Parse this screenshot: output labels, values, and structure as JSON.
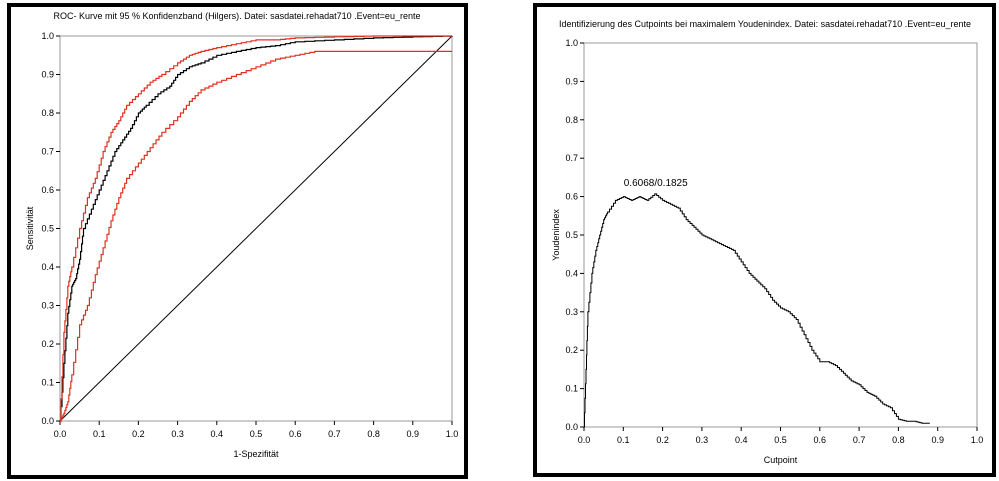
{
  "chart_data": [
    {
      "type": "line",
      "title": "ROC- Kurve mit  95 % Konfidenzband (Hilgers). Datei: sasdatei.rehadat710 .Event=eu_rente",
      "xlabel": "1-Spezifität",
      "ylabel": "Sensitivität",
      "xlim": [
        0,
        1
      ],
      "ylim": [
        0,
        1
      ],
      "xticks": [
        "0.0",
        "0.1",
        "0.2",
        "0.3",
        "0.4",
        "0.5",
        "0.6",
        "0.7",
        "0.8",
        "0.9",
        "1.0"
      ],
      "yticks": [
        "0.0",
        "0.1",
        "0.2",
        "0.3",
        "0.4",
        "0.5",
        "0.6",
        "0.7",
        "0.8",
        "0.9",
        "1.0"
      ],
      "grid": false,
      "colors": {
        "roc": "#000000",
        "band": "#e03020",
        "diagonal": "#000000"
      },
      "series": [
        {
          "role": "roc",
          "x": [
            0,
            0.01,
            0.02,
            0.03,
            0.04,
            0.05,
            0.06,
            0.08,
            0.1,
            0.12,
            0.14,
            0.16,
            0.18,
            0.2,
            0.22,
            0.25,
            0.28,
            0.3,
            0.33,
            0.36,
            0.4,
            0.45,
            0.5,
            0.55,
            0.6,
            0.7,
            0.8,
            0.9,
            1.0
          ],
          "y": [
            0,
            0.15,
            0.28,
            0.35,
            0.37,
            0.42,
            0.5,
            0.55,
            0.6,
            0.65,
            0.7,
            0.73,
            0.76,
            0.8,
            0.82,
            0.85,
            0.87,
            0.9,
            0.92,
            0.93,
            0.95,
            0.96,
            0.97,
            0.975,
            0.985,
            0.99,
            0.995,
            0.998,
            1.0
          ]
        },
        {
          "role": "upper",
          "x": [
            0,
            0.01,
            0.02,
            0.03,
            0.05,
            0.07,
            0.09,
            0.11,
            0.13,
            0.15,
            0.17,
            0.2,
            0.23,
            0.26,
            0.3,
            0.33,
            0.36,
            0.4,
            0.45,
            0.5,
            0.55,
            0.6,
            0.7,
            0.8,
            0.9,
            1.0
          ],
          "y": [
            0,
            0.23,
            0.35,
            0.4,
            0.5,
            0.58,
            0.63,
            0.7,
            0.75,
            0.78,
            0.82,
            0.85,
            0.88,
            0.9,
            0.93,
            0.95,
            0.96,
            0.97,
            0.98,
            0.99,
            0.99,
            0.995,
            0.998,
            1.0,
            1.0,
            1.0
          ]
        },
        {
          "role": "lower",
          "x": [
            0,
            0.01,
            0.02,
            0.03,
            0.05,
            0.07,
            0.09,
            0.11,
            0.13,
            0.15,
            0.17,
            0.2,
            0.23,
            0.26,
            0.3,
            0.33,
            0.36,
            0.4,
            0.45,
            0.5,
            0.55,
            0.6,
            0.65,
            0.68,
            0.7,
            0.8,
            0.9,
            1.0
          ],
          "y": [
            0,
            0.02,
            0.05,
            0.12,
            0.25,
            0.3,
            0.38,
            0.45,
            0.52,
            0.58,
            0.63,
            0.67,
            0.71,
            0.75,
            0.79,
            0.83,
            0.86,
            0.88,
            0.9,
            0.92,
            0.94,
            0.95,
            0.96,
            0.96,
            0.96,
            0.96,
            0.96,
            0.96
          ]
        }
      ]
    },
    {
      "type": "line",
      "title": "Identifizierung des Cutpoints bei maximalem Youdenindex. Datei: sasdatei.rehadat710 .Event=eu_rente",
      "xlabel": "Cutpoint",
      "ylabel": "Youdenindex",
      "xlim": [
        0,
        1
      ],
      "ylim": [
        0,
        1
      ],
      "xticks": [
        "0.0",
        "0.1",
        "0.2",
        "0.3",
        "0.4",
        "0.5",
        "0.6",
        "0.7",
        "0.8",
        "0.9",
        "1.0"
      ],
      "yticks": [
        "0.0",
        "0.1",
        "0.2",
        "0.3",
        "0.4",
        "0.5",
        "0.6",
        "0.7",
        "0.8",
        "0.9",
        "1.0"
      ],
      "grid": false,
      "annotation": {
        "text": "0.6068/0.1825",
        "x": 0.1825,
        "y": 0.6068,
        "color": "#cc0000"
      },
      "series": [
        {
          "role": "youden",
          "x": [
            0,
            0.005,
            0.01,
            0.02,
            0.03,
            0.04,
            0.05,
            0.06,
            0.08,
            0.1,
            0.12,
            0.14,
            0.16,
            0.18,
            0.2,
            0.22,
            0.24,
            0.26,
            0.28,
            0.3,
            0.32,
            0.34,
            0.36,
            0.38,
            0.4,
            0.42,
            0.44,
            0.46,
            0.48,
            0.5,
            0.52,
            0.54,
            0.56,
            0.58,
            0.6,
            0.62,
            0.64,
            0.66,
            0.68,
            0.7,
            0.72,
            0.74,
            0.76,
            0.78,
            0.8,
            0.82,
            0.84,
            0.86,
            0.88
          ],
          "y": [
            0,
            0.15,
            0.3,
            0.4,
            0.46,
            0.5,
            0.54,
            0.56,
            0.59,
            0.6,
            0.59,
            0.6,
            0.59,
            0.607,
            0.59,
            0.58,
            0.57,
            0.54,
            0.52,
            0.5,
            0.49,
            0.48,
            0.47,
            0.46,
            0.43,
            0.4,
            0.38,
            0.36,
            0.33,
            0.31,
            0.3,
            0.28,
            0.24,
            0.2,
            0.17,
            0.17,
            0.16,
            0.14,
            0.12,
            0.11,
            0.09,
            0.08,
            0.06,
            0.05,
            0.02,
            0.015,
            0.015,
            0.01,
            0.01
          ]
        }
      ]
    }
  ]
}
